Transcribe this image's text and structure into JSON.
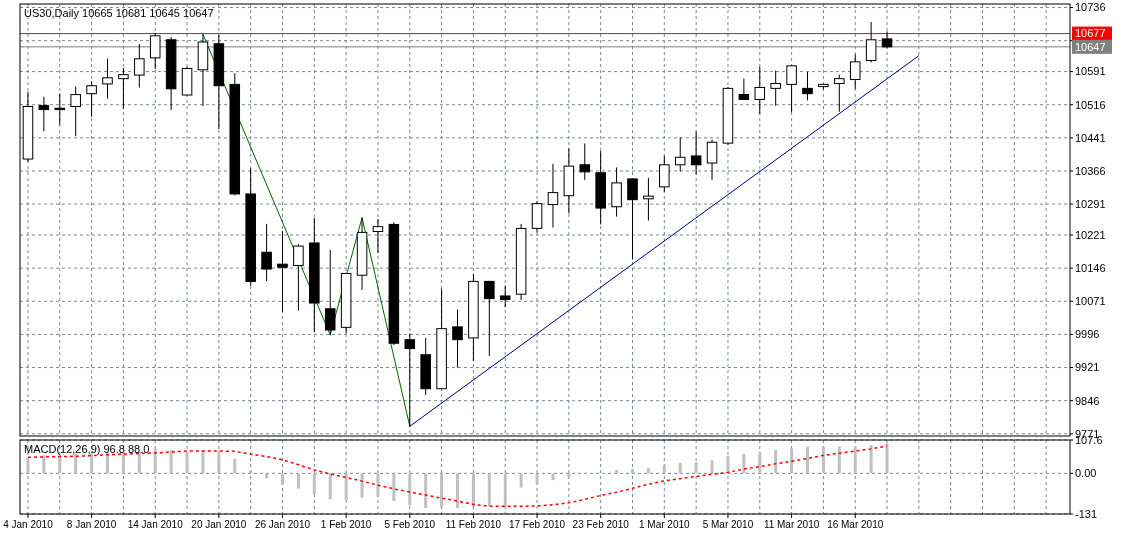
{
  "chart_data": [
    {
      "type": "candlestick",
      "title": "US30,Daily 10665 10681 10645 10647",
      "ohlc": [
        [
          10393,
          10544,
          10388,
          10512
        ],
        [
          10514,
          10533,
          10457,
          10505
        ],
        [
          10508,
          10540,
          10472,
          10505
        ],
        [
          10512,
          10556,
          10446,
          10539
        ],
        [
          10541,
          10568,
          10490,
          10559
        ],
        [
          10563,
          10619,
          10531,
          10577
        ],
        [
          10575,
          10598,
          10508,
          10584
        ],
        [
          10583,
          10652,
          10556,
          10620
        ],
        [
          10622,
          10677,
          10598,
          10672
        ],
        [
          10663,
          10668,
          10505,
          10552
        ],
        [
          10538,
          10601,
          10538,
          10598
        ],
        [
          10595,
          10675,
          10514,
          10658
        ],
        [
          10654,
          10673,
          10462,
          10559
        ],
        [
          10562,
          10586,
          10312,
          10314
        ],
        [
          10314,
          10371,
          10107,
          10116
        ],
        [
          10182,
          10245,
          10118,
          10144
        ],
        [
          10155,
          10229,
          10048,
          10148
        ],
        [
          10152,
          10199,
          10051,
          10196
        ],
        [
          10203,
          10259,
          10002,
          10067
        ],
        [
          10054,
          10186,
          9995,
          10006
        ],
        [
          10012,
          10134,
          9999,
          10134
        ],
        [
          10130,
          10260,
          10098,
          10227
        ],
        [
          10229,
          10256,
          10182,
          10240
        ],
        [
          10245,
          10249,
          9973,
          9976
        ],
        [
          9984,
          9997,
          9788,
          9964
        ],
        [
          9950,
          9987,
          9860,
          9873
        ],
        [
          9873,
          10098,
          9873,
          10009
        ],
        [
          10013,
          10051,
          9922,
          9984
        ],
        [
          9988,
          10132,
          9937,
          10116
        ],
        [
          10116,
          10116,
          9948,
          10077
        ],
        [
          10083,
          10105,
          10059,
          10075
        ],
        [
          10087,
          10245,
          10075,
          10236
        ],
        [
          10236,
          10297,
          10228,
          10292
        ],
        [
          10290,
          10381,
          10239,
          10317
        ],
        [
          10310,
          10416,
          10271,
          10377
        ],
        [
          10380,
          10427,
          10347,
          10364
        ],
        [
          10362,
          10410,
          10246,
          10282
        ],
        [
          10285,
          10373,
          10264,
          10339
        ],
        [
          10348,
          10348,
          10167,
          10301
        ],
        [
          10303,
          10349,
          10255,
          10309
        ],
        [
          10330,
          10399,
          10320,
          10380
        ],
        [
          10380,
          10441,
          10366,
          10397
        ],
        [
          10400,
          10454,
          10359,
          10380
        ],
        [
          10384,
          10436,
          10347,
          10431
        ],
        [
          10429,
          10555,
          10426,
          10553
        ],
        [
          10539,
          10574,
          10528,
          10528
        ],
        [
          10528,
          10601,
          10496,
          10555
        ],
        [
          10553,
          10592,
          10515,
          10564
        ],
        [
          10562,
          10604,
          10500,
          10604
        ],
        [
          10553,
          10589,
          10527,
          10541
        ],
        [
          10557,
          10562,
          10552,
          10562
        ],
        [
          10564,
          10583,
          10501,
          10575
        ],
        [
          10573,
          10629,
          10553,
          10613
        ],
        [
          10616,
          10702,
          10613,
          10663
        ],
        [
          10665,
          10681,
          10645,
          10647
        ],
        null,
        null,
        null,
        null,
        null,
        null,
        null,
        null,
        null,
        null,
        null
      ],
      "series": [
        {
          "type": "line",
          "color": "#006400",
          "values": [
            null,
            null,
            null,
            null,
            null,
            null,
            null,
            null,
            null,
            null,
            null,
            10675,
            null,
            null,
            null,
            null,
            null,
            null,
            null,
            9995,
            null,
            10260,
            null,
            null,
            9788,
            null,
            null,
            null,
            null,
            null,
            null,
            null,
            null,
            null,
            null,
            null,
            null,
            null,
            null,
            null,
            null,
            null,
            null,
            null,
            null,
            null,
            null,
            null,
            null,
            null,
            null,
            null,
            null,
            null,
            null,
            null,
            null,
            null,
            null,
            null,
            null,
            null,
            null,
            null,
            null,
            null
          ]
        },
        {
          "type": "line",
          "color": "#000080",
          "values": [
            null,
            null,
            null,
            null,
            null,
            null,
            null,
            null,
            null,
            null,
            null,
            null,
            null,
            null,
            null,
            null,
            null,
            null,
            null,
            null,
            null,
            null,
            null,
            null,
            9788,
            null,
            null,
            null,
            null,
            null,
            null,
            null,
            null,
            null,
            null,
            null,
            null,
            null,
            null,
            null,
            null,
            null,
            null,
            null,
            null,
            null,
            null,
            null,
            null,
            null,
            null,
            null,
            null,
            null,
            null,
            null,
            10627,
            null,
            null,
            null,
            null,
            null,
            null,
            null,
            null,
            null
          ]
        }
      ],
      "ref_lines": [
        {
          "axis": "y",
          "value": 10677,
          "label": "10677",
          "color": "#ff0000"
        },
        {
          "axis": "y",
          "value": 10647,
          "label": "10647",
          "color": "#808080"
        }
      ],
      "ylim": [
        9766,
        10744
      ],
      "yticks": [
        10736,
        {
          "value": 10661,
          "label": null
        },
        10591,
        10516,
        10441,
        10366,
        10291,
        10221,
        10146,
        10071,
        9996,
        9921,
        9846,
        9771
      ],
      "grid": true
    },
    {
      "type": "bar",
      "title": "MACD(12,26,9) 96.8 88.0",
      "categories": [
        "4 Jan 2010",
        null,
        null,
        null,
        "8 Jan 2010",
        null,
        null,
        null,
        "14 Jan 2010",
        null,
        null,
        null,
        "20 Jan 2010",
        null,
        null,
        null,
        "26 Jan 2010",
        null,
        null,
        null,
        "1 Feb 2010",
        null,
        null,
        null,
        "5 Feb 2010",
        null,
        null,
        null,
        "11 Feb 2010",
        null,
        null,
        null,
        "17 Feb 2010",
        null,
        null,
        null,
        "23 Feb 2010",
        null,
        null,
        null,
        "1 Mar 2010",
        null,
        null,
        null,
        "5 Mar 2010",
        null,
        null,
        null,
        "11 Mar 2010",
        null,
        null,
        null,
        "16 Mar 2010",
        null,
        null,
        null,
        null,
        null,
        null,
        null,
        null,
        null,
        null,
        null,
        null,
        null
      ],
      "series": [
        {
          "type": "bar",
          "color": "#c0c0c0",
          "values": [
            51,
            59,
            59,
            63,
            66,
            68,
            68,
            70,
            81,
            75,
            70,
            74,
            73,
            47,
            11,
            -16,
            -36,
            -49,
            -68,
            -84,
            -87,
            -78,
            -76,
            -89,
            -103,
            -112,
            -110,
            -112,
            -108,
            -105,
            -106,
            -46,
            -35,
            -22,
            -12,
            null,
            null,
            11,
            14,
            17,
            27,
            34,
            36,
            42,
            56,
            63,
            70,
            76,
            80,
            86,
            86,
            87,
            87,
            91,
            96.8,
            null,
            null,
            null,
            null,
            null,
            null,
            null,
            null,
            null,
            null,
            null
          ]
        },
        {
          "type": "line",
          "color": "#ff0000",
          "line_style": "dashed",
          "values": [
            52,
            53,
            54,
            55,
            57,
            60,
            62,
            64,
            66,
            69,
            72,
            72,
            72,
            71,
            62,
            54,
            44,
            28,
            11,
            -2,
            -13,
            -25,
            -38,
            -50,
            -60,
            -70,
            -80,
            -89,
            -100,
            -106,
            -106,
            -106,
            -105,
            -101,
            -95,
            -84,
            -71,
            -61,
            -48,
            -35,
            -24,
            -17,
            -10,
            -3,
            3,
            14,
            22,
            31,
            39,
            48,
            58,
            65,
            72,
            79,
            88.0,
            null,
            null,
            null,
            null,
            null,
            null,
            null,
            null,
            null,
            null,
            null
          ]
        }
      ],
      "ylim": [
        -131,
        107.6
      ],
      "yticks": [
        107.6,
        {
          "value": 0,
          "label": "0.00"
        },
        -131
      ],
      "grid": true
    }
  ]
}
